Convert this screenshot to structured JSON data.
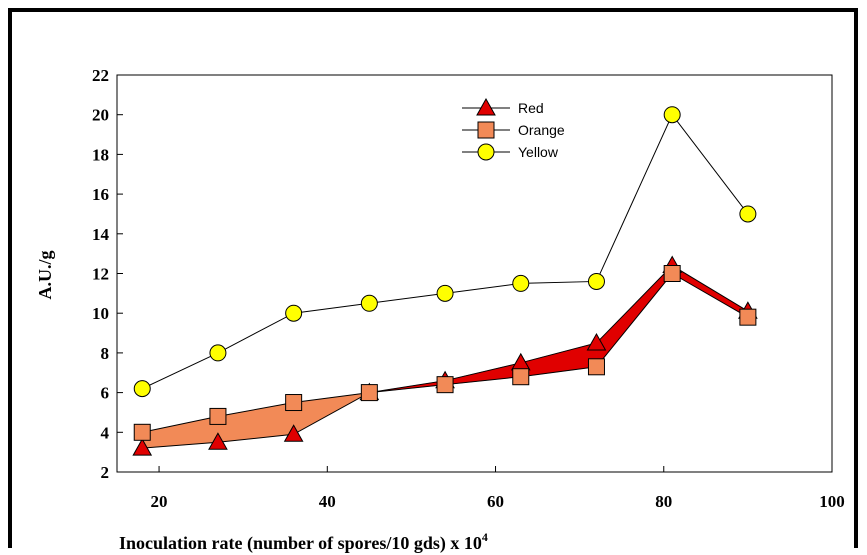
{
  "chart_data": {
    "type": "line",
    "title": "",
    "xlabel": "Inoculation rate (number of spores/10 gds) x 10",
    "xlabel_superscript": "4",
    "ylabel": "A.U./g",
    "xlim": [
      15,
      100
    ],
    "ylim": [
      2,
      22
    ],
    "xticks": [
      20,
      40,
      60,
      80,
      100
    ],
    "yticks": [
      2,
      4,
      6,
      8,
      10,
      12,
      14,
      16,
      18,
      20,
      22
    ],
    "grid": false,
    "legend_position": "top-center",
    "x": [
      18,
      27,
      36,
      45,
      54,
      63,
      72,
      81,
      90
    ],
    "series": [
      {
        "name": "Red",
        "marker": "triangle",
        "color": "#e00000",
        "values": [
          3.2,
          3.5,
          3.9,
          6.0,
          6.6,
          7.5,
          8.5,
          12.4,
          10.1
        ]
      },
      {
        "name": "Orange",
        "marker": "square",
        "color": "#f28a57",
        "values": [
          4.0,
          4.8,
          5.5,
          6.0,
          6.4,
          6.8,
          7.3,
          12.0,
          9.8
        ]
      },
      {
        "name": "Yellow",
        "marker": "circle",
        "color": "#ffff00",
        "values": [
          6.2,
          8.0,
          10.0,
          10.5,
          11.0,
          11.5,
          11.6,
          20.0,
          15.0
        ]
      }
    ]
  }
}
